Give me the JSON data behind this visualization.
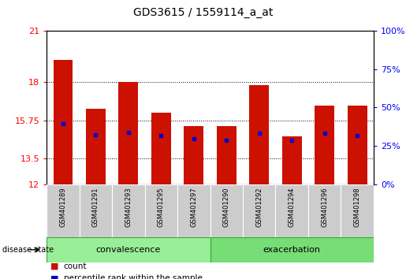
{
  "title": "GDS3615 / 1559114_a_at",
  "samples": [
    "GSM401289",
    "GSM401291",
    "GSM401293",
    "GSM401295",
    "GSM401297",
    "GSM401290",
    "GSM401292",
    "GSM401294",
    "GSM401296",
    "GSM401298"
  ],
  "bar_heights": [
    19.3,
    16.4,
    18.0,
    16.2,
    15.4,
    15.4,
    17.8,
    14.8,
    16.6,
    16.6
  ],
  "percentile_values": [
    15.55,
    14.9,
    15.05,
    14.85,
    14.65,
    14.55,
    15.0,
    14.55,
    15.0,
    14.85
  ],
  "bar_color": "#CC1100",
  "percentile_color": "#0000CC",
  "ymin": 12,
  "ymax": 21,
  "yticks_left": [
    12,
    13.5,
    15.75,
    18,
    21
  ],
  "yticks_right_pct": [
    0,
    25,
    50,
    75,
    100
  ],
  "groups": [
    {
      "label": "convalescence",
      "start": 0,
      "end": 5,
      "color": "#99EE99"
    },
    {
      "label": "exacerbation",
      "start": 5,
      "end": 10,
      "color": "#77DD77"
    }
  ],
  "group_label": "disease state",
  "legend_count_label": "count",
  "legend_percentile_label": "percentile rank within the sample",
  "title_fontsize": 10,
  "tick_fontsize": 8,
  "sample_fontsize": 6,
  "group_fontsize": 8,
  "legend_fontsize": 7.5
}
